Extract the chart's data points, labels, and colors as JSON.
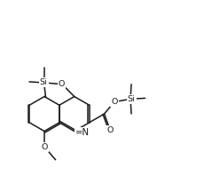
{
  "bg": "#ffffff",
  "lc": "#1a1a1a",
  "tc": "#1a1a1a",
  "lw": 1.1,
  "fs": 6.8,
  "fig_w": 2.39,
  "fig_h": 1.9,
  "U": 0.195,
  "BCx": 0.5,
  "BCy": 0.62,
  "doff": 0.016,
  "xlim": [
    0.0,
    2.39
  ],
  "ylim": [
    0.0,
    1.9
  ]
}
